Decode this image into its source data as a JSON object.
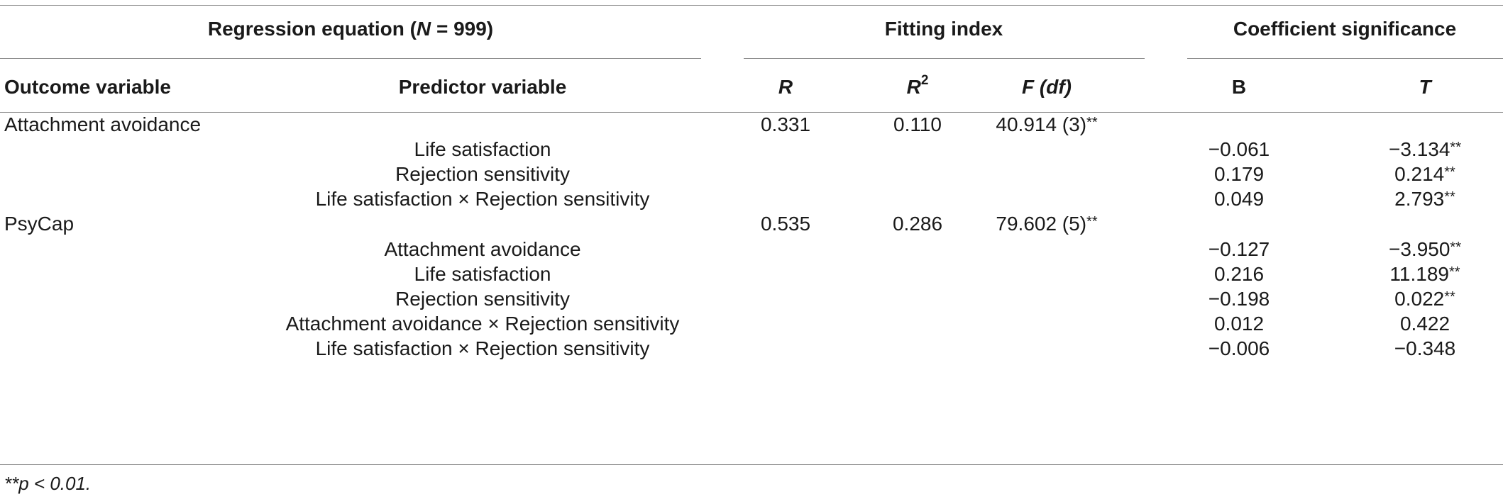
{
  "table": {
    "group_headers": {
      "regression": {
        "prefix": "Regression equation (",
        "n": "N",
        "suffix": " = 999)"
      },
      "fitting": "Fitting index",
      "coefficient": "Coefficient significance"
    },
    "column_headers": {
      "outcome": "Outcome variable",
      "predictor": "Predictor variable",
      "r": "R",
      "r2_base": "R",
      "r2_sup": "2",
      "f": "F (df)",
      "b": "B",
      "t": "T"
    },
    "rows": [
      {
        "outcome": "Attachment avoidance",
        "predictor": "",
        "r": "0.331",
        "r2": "0.110",
        "f": "40.914 (3)",
        "f_stars": "**",
        "b": "",
        "t": "",
        "t_stars": ""
      },
      {
        "outcome": "",
        "predictor": "Life satisfaction",
        "r": "",
        "r2": "",
        "f": "",
        "f_stars": "",
        "b": "−0.061",
        "t": "−3.134",
        "t_stars": "**"
      },
      {
        "outcome": "",
        "predictor": "Rejection sensitivity",
        "r": "",
        "r2": "",
        "f": "",
        "f_stars": "",
        "b": "0.179",
        "t": "0.214",
        "t_stars": "**"
      },
      {
        "outcome": "",
        "predictor": "Life satisfaction × Rejection sensitivity",
        "r": "",
        "r2": "",
        "f": "",
        "f_stars": "",
        "b": "0.049",
        "t": "2.793",
        "t_stars": "**"
      },
      {
        "outcome": "PsyCap",
        "predictor": "",
        "r": "0.535",
        "r2": "0.286",
        "f": "79.602 (5)",
        "f_stars": "**",
        "b": "",
        "t": "",
        "t_stars": ""
      },
      {
        "outcome": "",
        "predictor": "Attachment avoidance",
        "r": "",
        "r2": "",
        "f": "",
        "f_stars": "",
        "b": "−0.127",
        "t": "−3.950",
        "t_stars": "**"
      },
      {
        "outcome": "",
        "predictor": "Life satisfaction",
        "r": "",
        "r2": "",
        "f": "",
        "f_stars": "",
        "b": "0.216",
        "t": "11.189",
        "t_stars": "**"
      },
      {
        "outcome": "",
        "predictor": "Rejection sensitivity",
        "r": "",
        "r2": "",
        "f": "",
        "f_stars": "",
        "b": "−0.198",
        "t": "0.022",
        "t_stars": "**"
      },
      {
        "outcome": "",
        "predictor": "Attachment avoidance × Rejection sensitivity",
        "r": "",
        "r2": "",
        "f": "",
        "f_stars": "",
        "b": "0.012",
        "t": "0.422",
        "t_stars": ""
      },
      {
        "outcome": "",
        "predictor": "Life satisfaction × Rejection sensitivity",
        "r": "",
        "r2": "",
        "f": "",
        "f_stars": "",
        "b": "−0.006",
        "t": "−0.348",
        "t_stars": ""
      }
    ],
    "footnote": "**p < 0.01."
  }
}
